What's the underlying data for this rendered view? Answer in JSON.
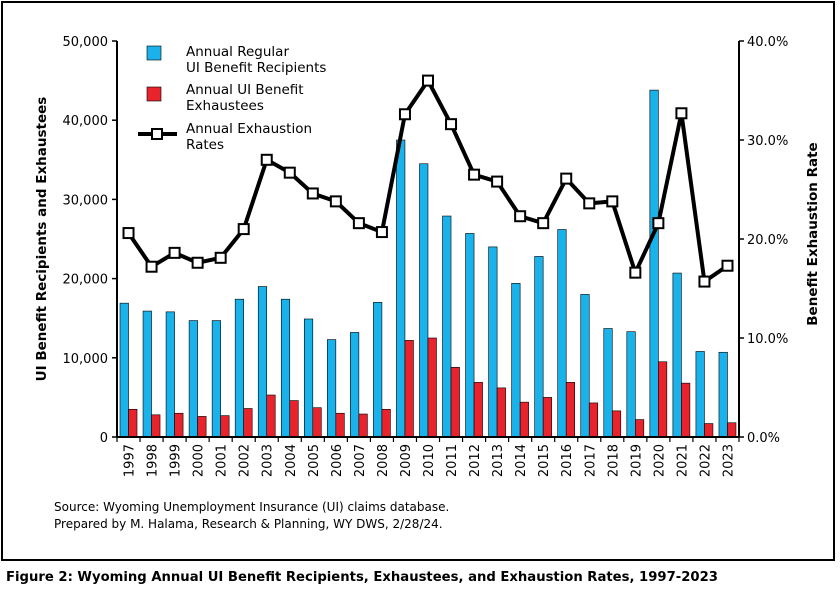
{
  "chart_data": {
    "type": "bar",
    "categories": [
      "1997",
      "1998",
      "1999",
      "2000",
      "2001",
      "2002",
      "2003",
      "2004",
      "2005",
      "2006",
      "2007",
      "2008",
      "2009",
      "2010",
      "2011",
      "2012",
      "2013",
      "2014",
      "2015",
      "2016",
      "2017",
      "2018",
      "2019",
      "2020",
      "2021",
      "2022",
      "2023"
    ],
    "series": [
      {
        "name": "Annual Regular UI Benefit Recipients",
        "legend_lines": [
          "Annual Regular",
          "UI Benefit Recipients"
        ],
        "kind": "bar",
        "axis": "left",
        "color": "#1ab2ea",
        "values": [
          16900,
          15900,
          15800,
          14700,
          14700,
          17400,
          19000,
          17400,
          14900,
          12300,
          13200,
          17000,
          37500,
          34500,
          27900,
          25700,
          24000,
          19400,
          22800,
          26200,
          18000,
          13700,
          13300,
          43800,
          20700,
          10800,
          10700
        ]
      },
      {
        "name": "Annual UI Benefit Exhaustees",
        "legend_lines": [
          "Annual UI Benefit",
          "Exhaustees"
        ],
        "kind": "bar",
        "axis": "left",
        "color": "#e8232b",
        "values": [
          3500,
          2800,
          3000,
          2600,
          2700,
          3600,
          5300,
          4600,
          3700,
          3000,
          2900,
          3500,
          12200,
          12500,
          8800,
          6900,
          6200,
          4400,
          5000,
          6900,
          4300,
          3300,
          2200,
          9500,
          6800,
          1700,
          1800
        ]
      },
      {
        "name": "Annual Exhaustion Rates",
        "legend_lines": [
          "Annual Exhaustion",
          "Rates"
        ],
        "kind": "line",
        "axis": "right",
        "color": "#000000",
        "values": [
          20.6,
          17.2,
          18.6,
          17.6,
          18.1,
          21.0,
          28.0,
          26.7,
          24.6,
          23.8,
          21.6,
          20.7,
          32.6,
          36.0,
          31.6,
          26.5,
          25.8,
          22.3,
          21.6,
          26.1,
          23.6,
          23.8,
          16.6,
          21.6,
          32.7,
          15.7,
          17.3
        ]
      }
    ],
    "ylabel": "UI Benefit Recipients and Exhaustees",
    "y2label": "Benefit Exhaustion Rate",
    "ylim": [
      0,
      50000
    ],
    "y_ticks": [
      "0",
      "10,000",
      "20,000",
      "30,000",
      "40,000",
      "50,000"
    ],
    "y2lim": [
      0,
      40
    ],
    "y2_ticks": [
      "0.0%",
      "10.0%",
      "20.0%",
      "30.0%",
      "40.0%"
    ],
    "legend_position": "top-left",
    "grid": false
  },
  "source_lines": [
    "Source: Wyoming Unemployment Insurance (UI) claims database.",
    "Prepared by M. Halama, Research & Planning, WY DWS, 2/28/24."
  ],
  "caption": "Figure 2: Wyoming Annual UI Benefit Recipients, Exhaustees, and Exhaustion Rates, 1997-2023"
}
